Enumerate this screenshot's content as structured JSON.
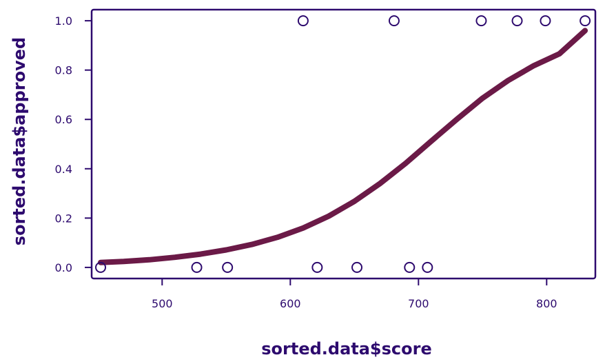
{
  "chart_data": {
    "type": "scatter",
    "xlabel": "sorted.data$score",
    "ylabel": "sorted.data$approved",
    "xlim": [
      445,
      838
    ],
    "ylim": [
      -0.045,
      1.045
    ],
    "x_ticks": [
      500,
      600,
      700,
      800
    ],
    "y_ticks": [
      0.0,
      0.2,
      0.4,
      0.6,
      0.8,
      1.0
    ],
    "x_tick_labels": [
      "500",
      "600",
      "700",
      "800"
    ],
    "y_tick_labels": [
      "0.0",
      "0.2",
      "0.4",
      "0.6",
      "0.8",
      "1.0"
    ],
    "grid": false,
    "points": [
      {
        "x": 452,
        "y": 0
      },
      {
        "x": 527,
        "y": 0
      },
      {
        "x": 551,
        "y": 0
      },
      {
        "x": 610,
        "y": 1
      },
      {
        "x": 621,
        "y": 0
      },
      {
        "x": 652,
        "y": 0
      },
      {
        "x": 681,
        "y": 1
      },
      {
        "x": 693,
        "y": 0
      },
      {
        "x": 707,
        "y": 0
      },
      {
        "x": 749,
        "y": 1
      },
      {
        "x": 777,
        "y": 1
      },
      {
        "x": 799,
        "y": 1
      },
      {
        "x": 830,
        "y": 1
      }
    ],
    "curve": {
      "type": "logistic",
      "x": [
        452,
        470,
        490,
        510,
        530,
        550,
        570,
        590,
        610,
        630,
        650,
        670,
        690,
        710,
        730,
        750,
        770,
        790,
        810,
        830
      ],
      "y": [
        0.02,
        0.024,
        0.031,
        0.041,
        0.054,
        0.071,
        0.093,
        0.122,
        0.16,
        0.208,
        0.268,
        0.34,
        0.422,
        0.512,
        0.601,
        0.686,
        0.758,
        0.818,
        0.866,
        0.96
      ]
    },
    "colors": {
      "axis": "#2d0a6e",
      "text": "#2d0a6e",
      "curve": "#6b1a47",
      "point_stroke": "#2d0a6e"
    }
  }
}
